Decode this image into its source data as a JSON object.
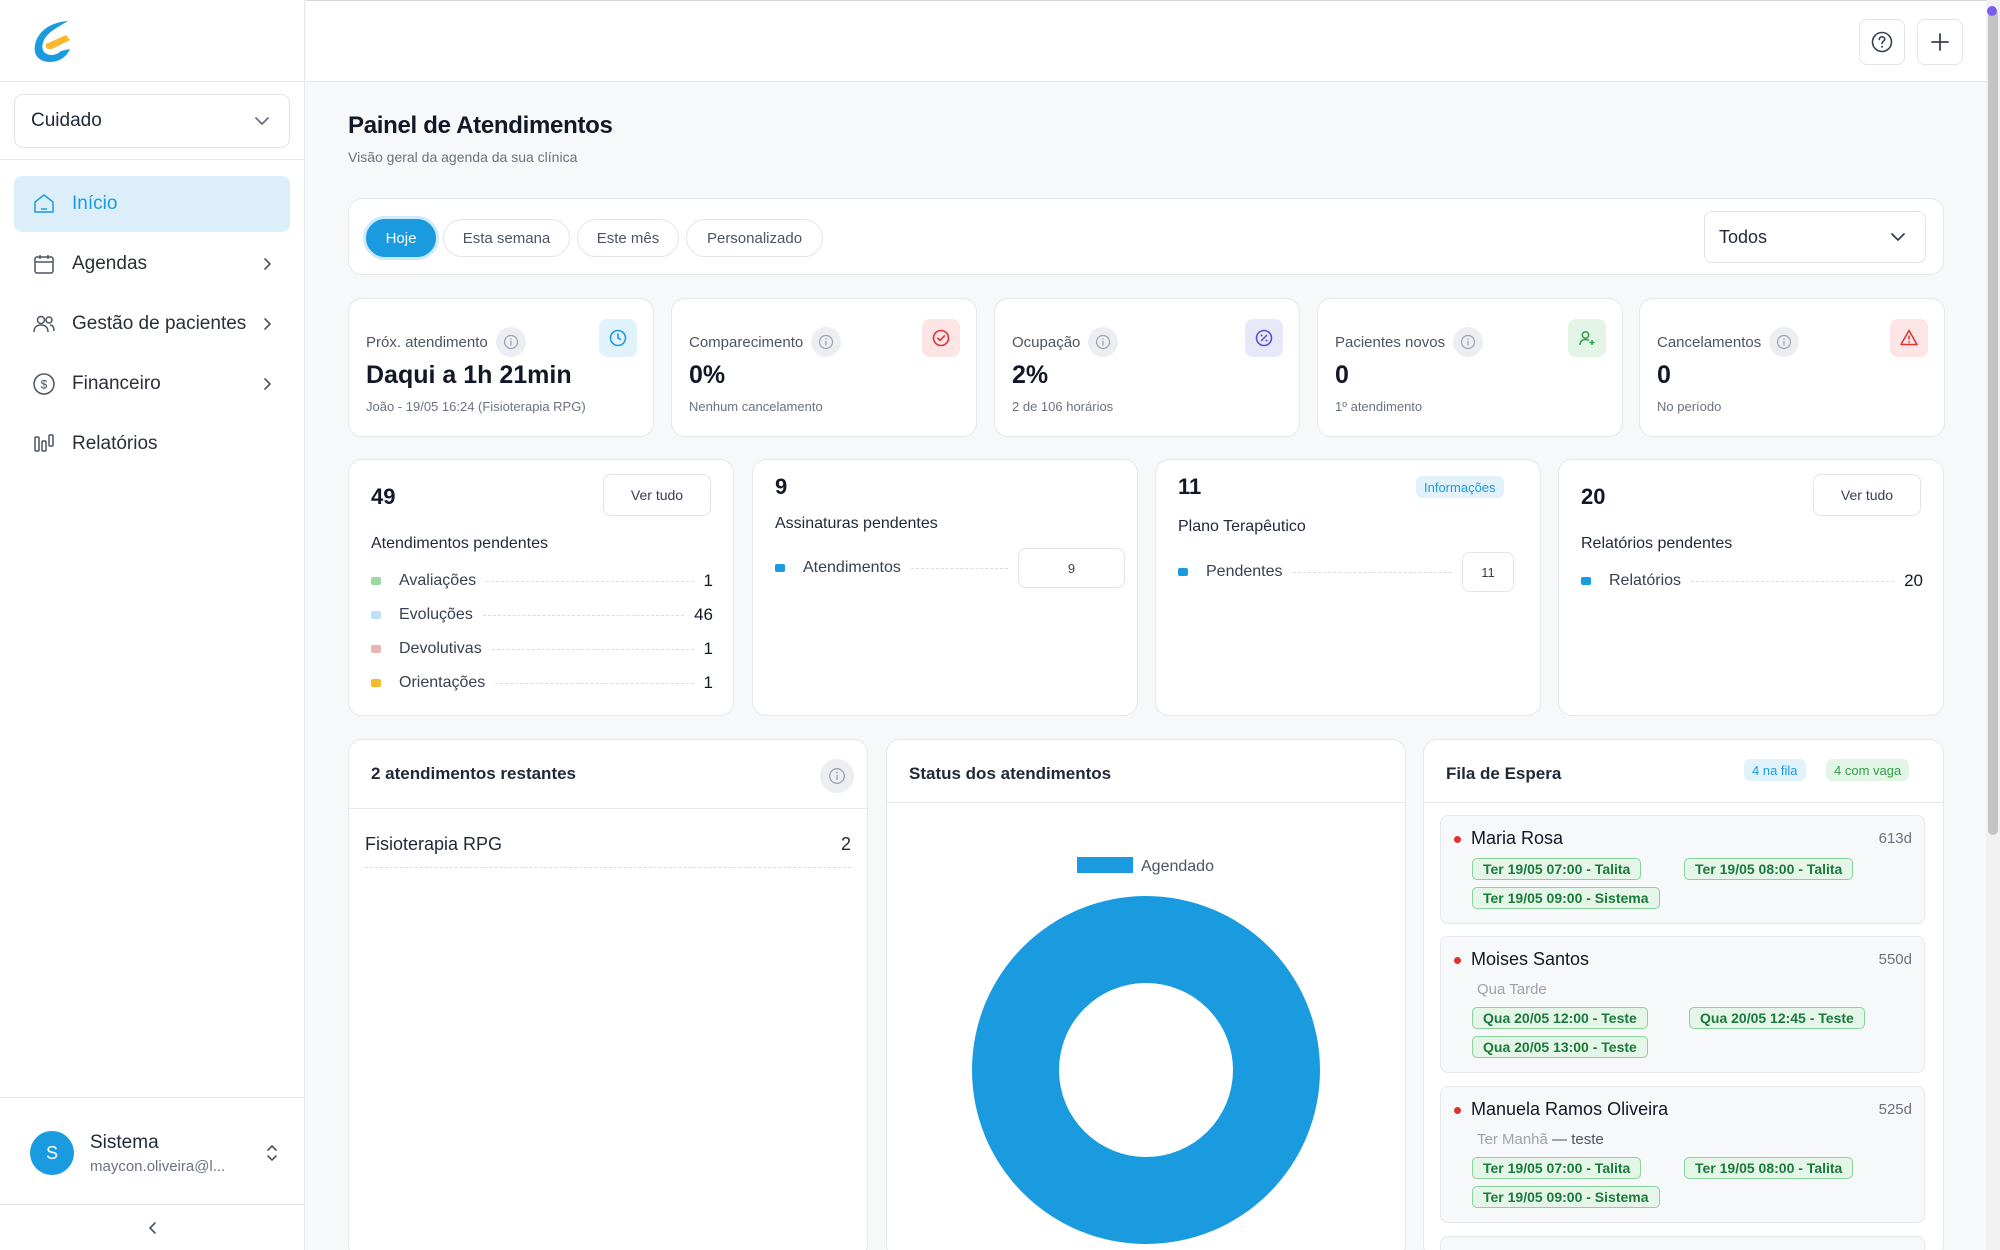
{
  "sidebar": {
    "workspace_select": "Cuidado",
    "items": [
      {
        "label": "Início",
        "active": true
      },
      {
        "label": "Agendas"
      },
      {
        "label": "Gestão de pacientes"
      },
      {
        "label": "Financeiro"
      },
      {
        "label": "Relatórios"
      }
    ],
    "user": {
      "initial": "S",
      "name": "Sistema",
      "email": "maycon.oliveira@l..."
    }
  },
  "header": {
    "title": "Painel de Atendimentos",
    "subtitle": "Visão geral da agenda da sua clínica"
  },
  "filters": {
    "chips": [
      "Hoje",
      "Esta semana",
      "Este mês",
      "Personalizado"
    ],
    "active": "Hoje",
    "select_value": "Todos"
  },
  "kpis": [
    {
      "label": "Próx. atendimento",
      "value": "Daqui a 1h 21min",
      "sub": "João - 19/05 16:24 (Fisioterapia RPG)",
      "icon": "clock-icon",
      "color": "#1a9be0"
    },
    {
      "label": "Comparecimento",
      "value": "0%",
      "sub": "Nenhum cancelamento",
      "icon": "check-circle-icon",
      "color": "#e03131"
    },
    {
      "label": "Ocupação",
      "value": "2%",
      "sub": "2 de 106 horários",
      "icon": "percent-icon",
      "color": "#5b4fd6"
    },
    {
      "label": "Pacientes novos",
      "value": "0",
      "sub": "1º atendimento",
      "icon": "user-plus-icon",
      "color": "#2f9e44"
    },
    {
      "label": "Cancelamentos",
      "value": "0",
      "sub": "No período",
      "icon": "alert-triangle-icon",
      "color": "#e03131"
    }
  ],
  "pending": {
    "atendimentos": {
      "count": "49",
      "title": "Atendimentos pendentes",
      "button": "Ver tudo",
      "rows": [
        {
          "label": "Avaliações",
          "value": "1",
          "color": "#9bd9a6"
        },
        {
          "label": "Evoluções",
          "value": "46",
          "color": "#bfe0f7"
        },
        {
          "label": "Devolutivas",
          "value": "1",
          "color": "#e9b7b3"
        },
        {
          "label": "Orientações",
          "value": "1",
          "color": "#f7b92b"
        }
      ]
    },
    "assinaturas": {
      "count": "9",
      "title": "Assinaturas pendentes",
      "row_label": "Atendimentos",
      "row_value": "9",
      "color": "#1a9be0"
    },
    "plano": {
      "count": "11",
      "title": "Plano Terapêutico",
      "badge": "Informações",
      "row_label": "Pendentes",
      "row_value": "11",
      "color": "#1a9be0"
    },
    "relatorios": {
      "count": "20",
      "title": "Relatórios pendentes",
      "button": "Ver tudo",
      "row_label": "Relatórios",
      "row_value": "20",
      "color": "#1a9be0"
    }
  },
  "remaining": {
    "title": "2 atendimentos restantes",
    "rows": [
      {
        "label": "Fisioterapia RPG",
        "value": "2"
      }
    ]
  },
  "status": {
    "title": "Status dos atendimentos",
    "chart_data": {
      "type": "pie",
      "categories": [
        "Agendado"
      ],
      "values": [
        100
      ],
      "colors": [
        "#1a9be0"
      ],
      "legend": "top"
    }
  },
  "waitlist": {
    "title": "Fila de Espera",
    "badge_queue": "4 na fila",
    "badge_vacancy": "4 com vaga",
    "items": [
      {
        "name": "Maria Rosa",
        "days": "613d",
        "pref": "",
        "pref_note": "",
        "slots": [
          "Ter 19/05 07:00  - Talita",
          "Ter 19/05 08:00  - Talita",
          "Ter 19/05 09:00  - Sistema"
        ]
      },
      {
        "name": "Moises Santos",
        "days": "550d",
        "pref": "Qua Tarde",
        "pref_note": "",
        "slots": [
          "Qua 20/05 12:00  - Teste",
          "Qua 20/05 12:45  - Teste",
          "Qua 20/05 13:00  - Teste"
        ]
      },
      {
        "name": "Manuela Ramos Oliveira",
        "days": "525d",
        "pref": "Ter Manhã",
        "pref_note": "— teste",
        "slots": [
          "Ter 19/05 07:00  - Talita",
          "Ter 19/05 08:00  - Talita",
          "Ter 19/05 09:00  - Sistema"
        ]
      }
    ]
  }
}
